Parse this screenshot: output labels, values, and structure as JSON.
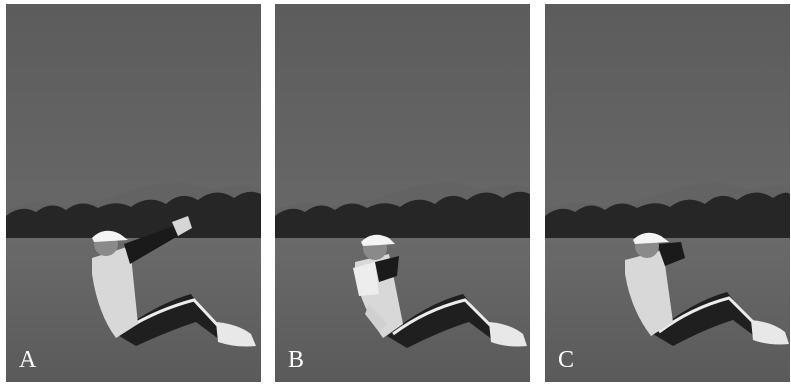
{
  "figure": {
    "panels": [
      {
        "label": "A",
        "pose": "arms-extended-forward"
      },
      {
        "label": "B",
        "pose": "twisting-with-elbows-crossed"
      },
      {
        "label": "C",
        "pose": "hands-behind-head"
      }
    ]
  }
}
